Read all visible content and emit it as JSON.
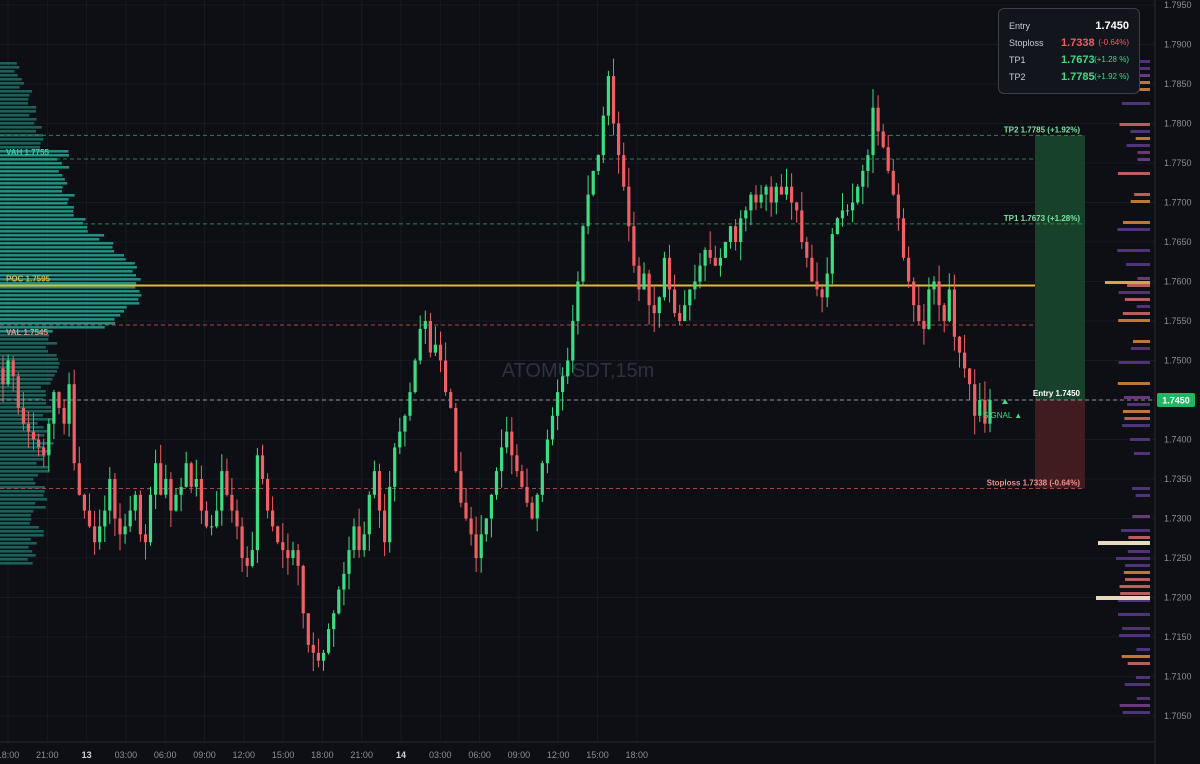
{
  "chart_data": {
    "type": "candlestick",
    "symbol_watermark": "ATOMUSDT,15m",
    "y_axis": {
      "ylim": [
        1.7,
        1.7975
      ],
      "ticks": [
        "1.7950",
        "1.7900",
        "1.7850",
        "1.7800",
        "1.7750",
        "1.7700",
        "1.7650",
        "1.7600",
        "1.7550",
        "1.7500",
        "1.7450",
        "1.7400",
        "1.7350",
        "1.7300",
        "1.7250",
        "1.7200",
        "1.7150",
        "1.7100",
        "1.7050"
      ],
      "current_price_label": "1.7450"
    },
    "x_axis": {
      "ticks": [
        "18:00",
        "21:00",
        "13",
        "03:00",
        "06:00",
        "09:00",
        "12:00",
        "15:00",
        "18:00",
        "21:00",
        "14",
        "03:00",
        "06:00",
        "09:00",
        "12:00",
        "15:00",
        "18:00"
      ],
      "day_marks": [
        "13",
        "14"
      ]
    },
    "levels": {
      "tp2": {
        "price": 1.7785,
        "label": "TP2 1.7785 (+1.92%)"
      },
      "vah": {
        "price": 1.7755,
        "label": "VAH 1.7755"
      },
      "tp1": {
        "price": 1.7673,
        "label": "TP1 1.7673 (+1.28%)"
      },
      "poc": {
        "price": 1.7595,
        "label": "POC 1.7595"
      },
      "val": {
        "price": 1.7545,
        "label": "VAL 1.7545"
      },
      "entry": {
        "price": 1.745,
        "label": "Entry 1.7450"
      },
      "stoploss": {
        "price": 1.7338,
        "label": "Stoploss 1.7338 (-0.64%)"
      }
    },
    "signal_label": "SIGNAL ▲",
    "trade_box": {
      "entry": "1.7450",
      "stoploss": "1.7338",
      "stoploss_pct": "(-0.64%)",
      "tp1": "1.7673",
      "tp1_pct": "(+1.28 %)",
      "tp2": "1.7785",
      "tp2_pct": "(+1.92 %)"
    },
    "closes": [
      1.747,
      1.75,
      1.748,
      1.744,
      1.742,
      1.741,
      1.74,
      1.739,
      1.738,
      1.742,
      1.746,
      1.744,
      1.742,
      1.747,
      1.737,
      1.733,
      1.731,
      1.729,
      1.727,
      1.729,
      1.731,
      1.735,
      1.73,
      1.728,
      1.729,
      1.731,
      1.733,
      1.728,
      1.727,
      1.733,
      1.737,
      1.733,
      1.735,
      1.731,
      1.733,
      1.734,
      1.737,
      1.734,
      1.735,
      1.731,
      1.729,
      1.729,
      1.731,
      1.736,
      1.733,
      1.731,
      1.729,
      1.725,
      1.724,
      1.726,
      1.738,
      1.735,
      1.731,
      1.729,
      1.727,
      1.726,
      1.725,
      1.726,
      1.724,
      1.718,
      1.714,
      1.713,
      1.712,
      1.713,
      1.716,
      1.718,
      1.721,
      1.723,
      1.726,
      1.729,
      1.726,
      1.728,
      1.733,
      1.736,
      1.731,
      1.727,
      1.734,
      1.739,
      1.741,
      1.743,
      1.746,
      1.75,
      1.754,
      1.755,
      1.751,
      1.752,
      1.75,
      1.746,
      1.744,
      1.736,
      1.732,
      1.73,
      1.728,
      1.725,
      1.728,
      1.73,
      1.733,
      1.736,
      1.739,
      1.741,
      1.738,
      1.736,
      1.734,
      1.732,
      1.73,
      1.733,
      1.737,
      1.74,
      1.743,
      1.746,
      1.748,
      1.75,
      1.755,
      1.76,
      1.767,
      1.771,
      1.774,
      1.776,
      1.781,
      1.786,
      1.78,
      1.776,
      1.772,
      1.767,
      1.762,
      1.759,
      1.761,
      1.757,
      1.756,
      1.758,
      1.763,
      1.759,
      1.756,
      1.755,
      1.757,
      1.759,
      1.76,
      1.762,
      1.764,
      1.763,
      1.762,
      1.763,
      1.765,
      1.767,
      1.765,
      1.768,
      1.769,
      1.771,
      1.77,
      1.771,
      1.772,
      1.77,
      1.772,
      1.771,
      1.772,
      1.77,
      1.769,
      1.765,
      1.763,
      1.76,
      1.759,
      1.758,
      1.761,
      1.766,
      1.768,
      1.769,
      1.769,
      1.77,
      1.772,
      1.774,
      1.776,
      1.782,
      1.779,
      1.777,
      1.774,
      1.771,
      1.768,
      1.763,
      1.76,
      1.757,
      1.755,
      1.754,
      1.759,
      1.76,
      1.757,
      1.755,
      1.759,
      1.753,
      1.751,
      1.749,
      1.747,
      1.743,
      1.745,
      1.742,
      1.745
    ]
  }
}
